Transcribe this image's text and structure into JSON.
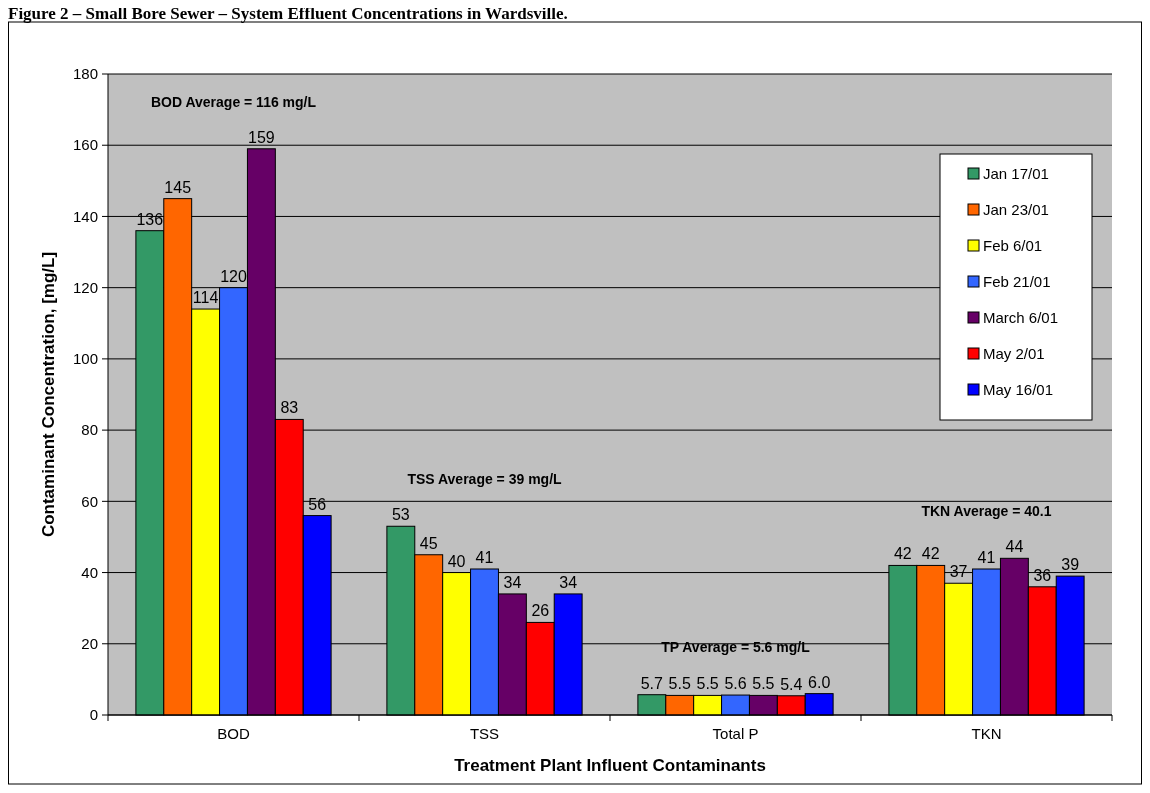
{
  "chart_data": {
    "type": "bar",
    "title": "Figure 2 – Small Bore Sewer – System Effluent Concentrations in Wardsville.",
    "xlabel": "Treatment Plant Influent Contaminants",
    "ylabel": "Contaminant Concentration, [mg/L]",
    "categories": [
      "BOD",
      "TSS",
      "Total P",
      "TKN"
    ],
    "series": [
      {
        "name": "Jan 17/01",
        "color": "#339966",
        "values": [
          136,
          53,
          5.7,
          42
        ],
        "value_labels": [
          "136",
          "53",
          "5.7",
          "42"
        ]
      },
      {
        "name": "Jan 23/01",
        "color": "#ff6600",
        "values": [
          145,
          45,
          5.5,
          42
        ],
        "value_labels": [
          "145",
          "45",
          "5.5",
          "42"
        ]
      },
      {
        "name": "Feb 6/01",
        "color": "#ffff00",
        "values": [
          114,
          40,
          5.5,
          37
        ],
        "value_labels": [
          "114",
          "40",
          "5.5",
          "37"
        ]
      },
      {
        "name": "Feb 21/01",
        "color": "#3366ff",
        "values": [
          120,
          41,
          5.6,
          41
        ],
        "value_labels": [
          "120",
          "41",
          "5.6",
          "41"
        ]
      },
      {
        "name": "March 6/01",
        "color": "#660066",
        "values": [
          159,
          34,
          5.5,
          44
        ],
        "value_labels": [
          "159",
          "34",
          "5.5",
          "44"
        ]
      },
      {
        "name": "May 2/01",
        "color": "#ff0000",
        "values": [
          83,
          26,
          5.4,
          36
        ],
        "value_labels": [
          "83",
          "26",
          "5.4",
          "36"
        ]
      },
      {
        "name": "May 16/01",
        "color": "#0000ff",
        "values": [
          56,
          34,
          6.0,
          39
        ],
        "value_labels": [
          "56",
          "34",
          "6.0",
          "39"
        ]
      }
    ],
    "ylim": [
      0,
      180
    ],
    "yticks": [
      0,
      20,
      40,
      60,
      80,
      100,
      120,
      140,
      160,
      180
    ],
    "grid": "y",
    "legend": "top right",
    "annotations": [
      "BOD Average = 116 mg/L",
      "TSS Average = 39 mg/L",
      "TP Average = 5.6 mg/L",
      "TKN Average = 40.1"
    ]
  }
}
